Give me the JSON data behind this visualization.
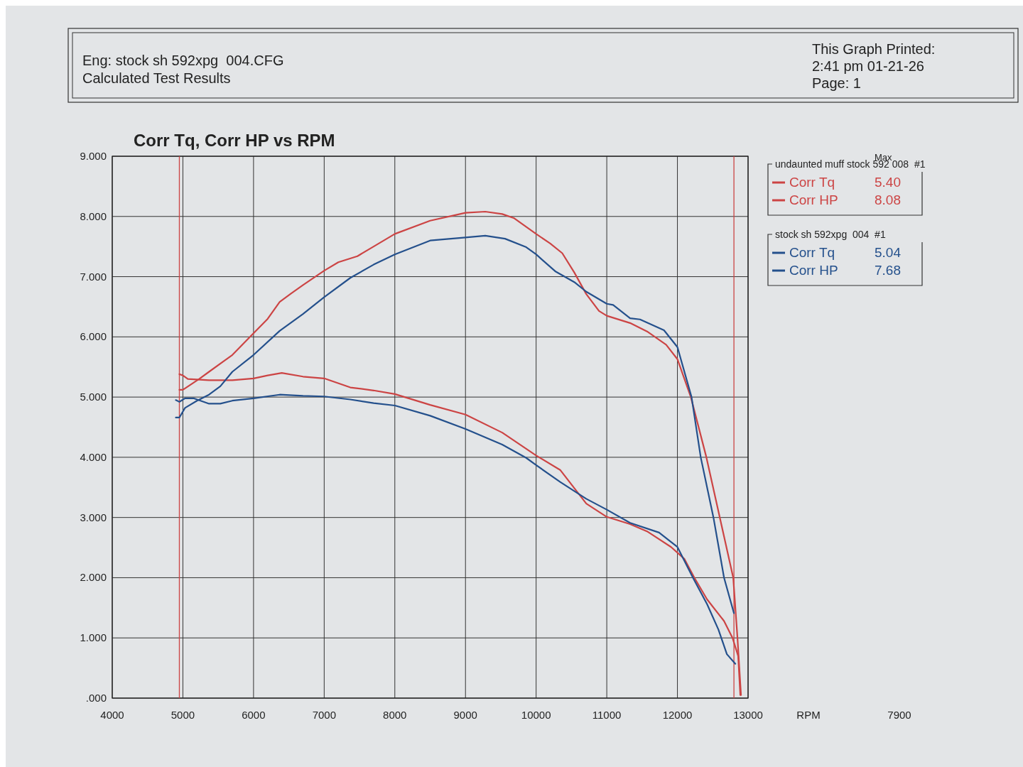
{
  "chart_data": {
    "type": "line",
    "title": "Corr Tq, Corr HP vs RPM",
    "xlabel": "RPM",
    "xlim": [
      4000,
      13000
    ],
    "xticks": [
      4000,
      5000,
      6000,
      7000,
      8000,
      9000,
      10000,
      11000,
      12000,
      13000
    ],
    "ylim": [
      0,
      9
    ],
    "yticks": [
      {
        "value": 0,
        "label": ".000"
      },
      {
        "value": 1,
        "label": "1.000"
      },
      {
        "value": 2,
        "label": "2.000"
      },
      {
        "value": 3,
        "label": "3.000"
      },
      {
        "value": 4,
        "label": "4.000"
      },
      {
        "value": 5,
        "label": "5.000"
      },
      {
        "value": 6,
        "label": "6.000"
      },
      {
        "value": 7,
        "label": "7.000"
      },
      {
        "value": 8,
        "label": "8.000"
      },
      {
        "value": 9,
        "label": "9.000"
      }
    ],
    "grid": true,
    "legend": "right",
    "series": [
      {
        "name": "Corr Tq",
        "color": "#cc4444",
        "x": [
          4950,
          5000,
          5070,
          5370,
          5700,
          6000,
          6200,
          6400,
          6700,
          7000,
          7370,
          7700,
          8000,
          8500,
          9000,
          9520,
          10000,
          10340,
          10710,
          11000,
          11330,
          11570,
          11910,
          12100,
          12240,
          12420,
          12660,
          12780,
          12860,
          12890
        ],
        "values": [
          5.38,
          5.36,
          5.3,
          5.28,
          5.28,
          5.31,
          5.36,
          5.4,
          5.34,
          5.31,
          5.16,
          5.11,
          5.05,
          4.87,
          4.71,
          4.41,
          4.03,
          3.79,
          3.23,
          3.01,
          2.89,
          2.77,
          2.51,
          2.31,
          2.0,
          1.64,
          1.28,
          1.0,
          0.7,
          0.05
        ]
      },
      {
        "name": "Corr HP",
        "color": "#cc4444",
        "x": [
          4950,
          5000,
          5230,
          5370,
          5700,
          6000,
          6200,
          6370,
          6530,
          6700,
          7000,
          7200,
          7470,
          7700,
          8000,
          8500,
          9000,
          9280,
          9520,
          9690,
          10000,
          10200,
          10370,
          10540,
          10710,
          10890,
          11000,
          11330,
          11570,
          11840,
          12000,
          12190,
          12410,
          12600,
          12790,
          12850,
          12900
        ],
        "values": [
          5.12,
          5.12,
          5.3,
          5.42,
          5.7,
          6.06,
          6.3,
          6.58,
          6.72,
          6.86,
          7.1,
          7.24,
          7.34,
          7.5,
          7.71,
          7.93,
          8.06,
          8.08,
          8.04,
          7.97,
          7.71,
          7.55,
          7.39,
          7.07,
          6.71,
          6.43,
          6.35,
          6.23,
          6.09,
          5.87,
          5.63,
          5.0,
          4.0,
          3.0,
          2.0,
          1.0,
          0.05
        ]
      },
      {
        "name": "Corr Tq",
        "color": "#24508c",
        "x": [
          4900,
          4950,
          5030,
          5150,
          5370,
          5530,
          5700,
          6000,
          6370,
          6700,
          7000,
          7370,
          7700,
          8000,
          8500,
          9000,
          9520,
          9860,
          10000,
          10340,
          10710,
          11000,
          11330,
          11740,
          12000,
          12220,
          12420,
          12580,
          12700,
          12820
        ],
        "values": [
          4.95,
          4.92,
          4.98,
          4.98,
          4.89,
          4.89,
          4.94,
          4.98,
          5.04,
          5.02,
          5.01,
          4.96,
          4.9,
          4.86,
          4.69,
          4.47,
          4.21,
          3.99,
          3.87,
          3.59,
          3.31,
          3.13,
          2.91,
          2.75,
          2.51,
          2.0,
          1.56,
          1.14,
          0.73,
          0.57
        ]
      },
      {
        "name": "Corr HP",
        "color": "#24508c",
        "x": [
          4900,
          4950,
          5030,
          5200,
          5370,
          5530,
          5700,
          6000,
          6370,
          6700,
          7000,
          7370,
          7700,
          8000,
          8500,
          9000,
          9280,
          9560,
          9860,
          10000,
          10270,
          10540,
          10710,
          11000,
          11090,
          11330,
          11470,
          11810,
          12000,
          12200,
          12330,
          12510,
          12660,
          12800
        ],
        "values": [
          4.66,
          4.66,
          4.82,
          4.94,
          5.04,
          5.18,
          5.42,
          5.7,
          6.1,
          6.38,
          6.66,
          6.98,
          7.2,
          7.37,
          7.6,
          7.65,
          7.68,
          7.63,
          7.49,
          7.37,
          7.09,
          6.91,
          6.75,
          6.55,
          6.53,
          6.31,
          6.29,
          6.11,
          5.83,
          5.0,
          4.0,
          3.0,
          2.0,
          1.41
        ]
      }
    ],
    "ref_lines": [
      {
        "axis": "x",
        "value": 4950,
        "color": "#cc4444"
      },
      {
        "axis": "x",
        "value": 12800,
        "color": "#cc4444"
      }
    ],
    "annotations": [
      "Eng: stock sh 592xpg  004.CFG",
      "Calculated Test Results",
      "This Graph Printed:",
      "2:41 pm 01-21-26",
      "Page: 1",
      "7900",
      "Max",
      "undaunted muff stock 592 008  #1",
      "5.40",
      "8.08",
      "stock sh 592xpg  004  #1",
      "5.04",
      "7.68"
    ]
  }
}
